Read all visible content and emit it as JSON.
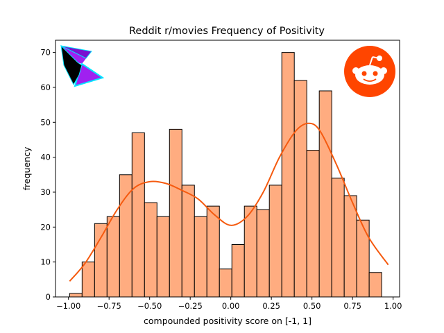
{
  "chart_data": {
    "type": "bar",
    "title": "Reddit r/movies Frequency of Positivity",
    "xlabel": "compounded positivity score on [-1, 1]",
    "ylabel": "frequency",
    "xlim": [
      -1.08,
      1.04
    ],
    "ylim": [
      0,
      73.5
    ],
    "xticks": [
      {
        "v": -1.0,
        "label": "−1.00"
      },
      {
        "v": -0.75,
        "label": "−0.75"
      },
      {
        "v": -0.5,
        "label": "−0.50"
      },
      {
        "v": -0.25,
        "label": "−0.25"
      },
      {
        "v": 0.0,
        "label": "0.00"
      },
      {
        "v": 0.25,
        "label": "0.25"
      },
      {
        "v": 0.5,
        "label": "0.50"
      },
      {
        "v": 0.75,
        "label": "0.75"
      },
      {
        "v": 1.0,
        "label": "1.00"
      }
    ],
    "yticks": [
      {
        "v": 0,
        "label": "0"
      },
      {
        "v": 10,
        "label": "10"
      },
      {
        "v": 20,
        "label": "20"
      },
      {
        "v": 30,
        "label": "30"
      },
      {
        "v": 40,
        "label": "40"
      },
      {
        "v": 50,
        "label": "50"
      },
      {
        "v": 60,
        "label": "60"
      },
      {
        "v": 70,
        "label": "70"
      }
    ],
    "bin_start": -0.993,
    "bin_width": 0.0769,
    "values": [
      1,
      10,
      21,
      23,
      35,
      47,
      27,
      23,
      48,
      32,
      23,
      26,
      8,
      15,
      26,
      25,
      32,
      70,
      62,
      42,
      59,
      34,
      29,
      22,
      7
    ],
    "bar_color": "#ffac80",
    "bar_edge": "#000000",
    "kde": {
      "color": "#f55a0f",
      "x": [
        -0.993,
        -0.9,
        -0.8,
        -0.7,
        -0.6,
        -0.5,
        -0.4,
        -0.3,
        -0.2,
        -0.1,
        0.0,
        0.1,
        0.2,
        0.3,
        0.4,
        0.48,
        0.55,
        0.65,
        0.75,
        0.85,
        0.97
      ],
      "y": [
        4.5,
        9.5,
        17,
        25,
        31,
        33,
        32.5,
        30.5,
        28,
        23.5,
        20.5,
        23,
        30,
        40,
        47.5,
        49.7,
        47.5,
        38,
        27,
        17,
        9.2
      ]
    }
  },
  "logos": {
    "left": {
      "icon": "kite-logo-icon",
      "colors": [
        "#000000",
        "#a020f0",
        "#00e5ff"
      ]
    },
    "right": {
      "icon": "reddit-logo-icon",
      "color": "#ff4500"
    }
  }
}
